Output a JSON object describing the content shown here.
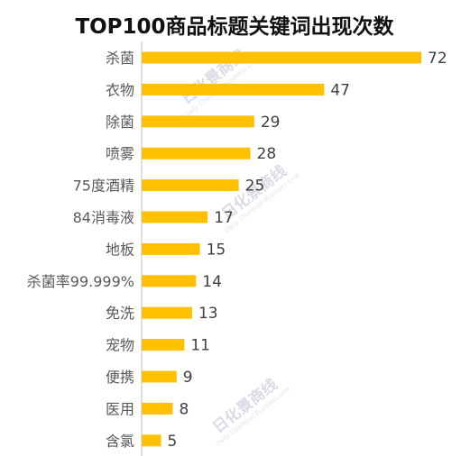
{
  "chart_data": {
    "type": "bar",
    "orientation": "horizontal",
    "title": "TOP100商品标题关键词出现次数",
    "categories": [
      "杀菌",
      "衣物",
      "除菌",
      "喷雾",
      "75度酒精",
      "84消毒液",
      "地板",
      "杀菌率99.999%",
      "免洗",
      "宠物",
      "便携",
      "医用",
      "含氯"
    ],
    "values": [
      72,
      47,
      29,
      28,
      25,
      17,
      15,
      14,
      13,
      11,
      9,
      8,
      5
    ],
    "xlim": [
      0,
      72
    ],
    "grid": false,
    "legend": "none",
    "bar_color": "#ffc000",
    "axis_color": "#bfbfbf"
  },
  "watermark": {
    "text": "日化景商线",
    "subtext": "Daily Chemical Business Line"
  }
}
